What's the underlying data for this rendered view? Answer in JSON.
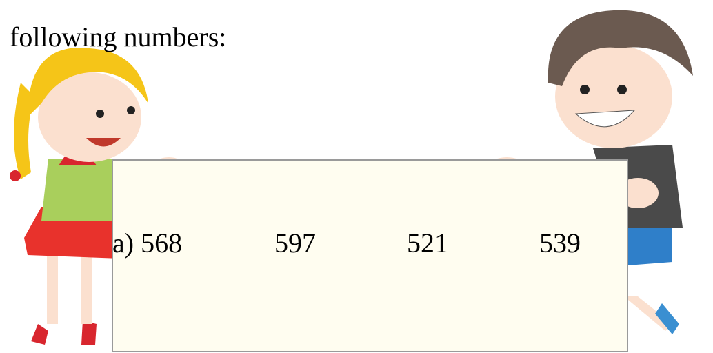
{
  "instruction": "following numbers:",
  "row": {
    "items": [
      "a) 568",
      "597",
      "521",
      "539"
    ]
  }
}
